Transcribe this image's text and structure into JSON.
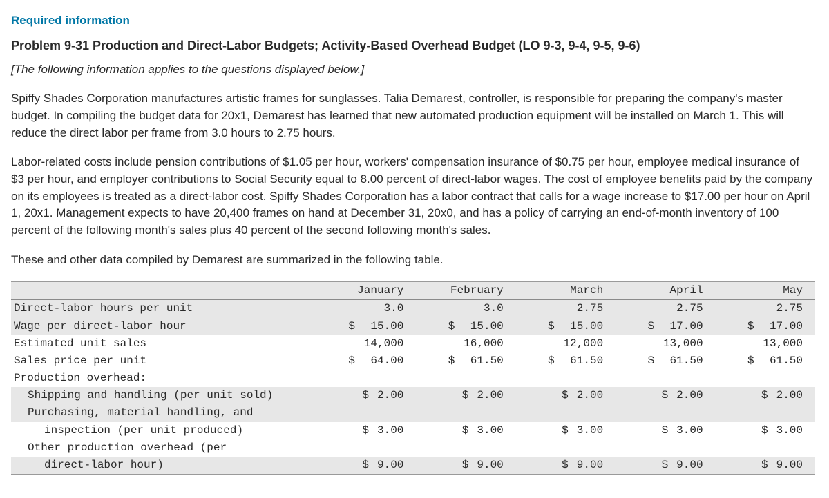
{
  "header": {
    "required": "Required information",
    "title": "Problem 9-31 Production and Direct-Labor Budgets; Activity-Based Overhead Budget (LO 9-3, 9-4, 9-5, 9-6)",
    "note": "[The following information applies to the questions displayed below.]"
  },
  "paras": {
    "p1": "Spiffy Shades Corporation manufactures artistic frames for sunglasses. Talia Demarest, controller, is responsible for preparing the company's master budget. In compiling the budget data for 20x1, Demarest has learned that new automated production equipment will be installed on March 1. This will reduce the direct labor per frame from 3.0 hours to 2.75 hours.",
    "p2": "Labor-related costs include pension contributions of $1.05 per hour, workers' compensation insurance of $0.75 per hour, employee medical insurance of $3 per hour, and employer contributions to Social Security equal to 8.00 percent of direct-labor wages. The cost of employee benefits paid by the company on its employees is treated as a direct-labor cost. Spiffy Shades Corporation has a labor contract that calls for a wage increase to $17.00 per hour on April 1, 20x1. Management expects to have 20,400 frames on hand at December 31, 20x0, and has a policy of carrying an end-of-month inventory of 100 percent of the following month's sales plus 40 percent of the second following month's sales.",
    "p3": "These and other data compiled by Demarest are summarized in the following table."
  },
  "table": {
    "columns": [
      "January",
      "February",
      "March",
      "April",
      "May"
    ],
    "rows": [
      {
        "label": "Direct-labor hours per unit",
        "indent": 0,
        "vals": [
          "3.0",
          "3.0",
          "2.75",
          "2.75",
          "2.75"
        ],
        "money": false
      },
      {
        "label": "Wage per direct-labor hour",
        "indent": 0,
        "vals": [
          "15.00",
          "15.00",
          "15.00",
          "17.00",
          "17.00"
        ],
        "money": true
      },
      {
        "label": "Estimated unit sales",
        "indent": 0,
        "vals": [
          "14,000",
          "16,000",
          "12,000",
          "13,000",
          "13,000"
        ],
        "money": false
      },
      {
        "label": "Sales price per unit",
        "indent": 0,
        "vals": [
          "64.00",
          "61.50",
          "61.50",
          "61.50",
          "61.50"
        ],
        "money": true
      },
      {
        "label": "Production overhead:",
        "indent": 0,
        "vals": [
          "",
          "",
          "",
          "",
          ""
        ],
        "money": false
      },
      {
        "label": "Shipping and handling (per unit sold)",
        "indent": 1,
        "vals": [
          "2.00",
          "2.00",
          "2.00",
          "2.00",
          "2.00"
        ],
        "money": true,
        "wide": true
      },
      {
        "label": "Purchasing, material handling, and",
        "indent": 1,
        "vals": [
          "",
          "",
          "",
          "",
          ""
        ],
        "money": false
      },
      {
        "label": "inspection (per unit produced)",
        "indent": 2,
        "vals": [
          "3.00",
          "3.00",
          "3.00",
          "3.00",
          "3.00"
        ],
        "money": true,
        "wide": true
      },
      {
        "label": "Other production overhead (per",
        "indent": 1,
        "vals": [
          "",
          "",
          "",
          "",
          ""
        ],
        "money": false
      },
      {
        "label": "direct-labor hour)",
        "indent": 2,
        "vals": [
          "9.00",
          "9.00",
          "9.00",
          "9.00",
          "9.00"
        ],
        "money": true,
        "wide": true
      }
    ],
    "band_rows": [
      0,
      1,
      5,
      6,
      9
    ],
    "header_band": true,
    "style": {
      "mono_font": "Courier New",
      "band_bg": "#e7e7e7",
      "border_color": "#9a9a9a"
    }
  }
}
